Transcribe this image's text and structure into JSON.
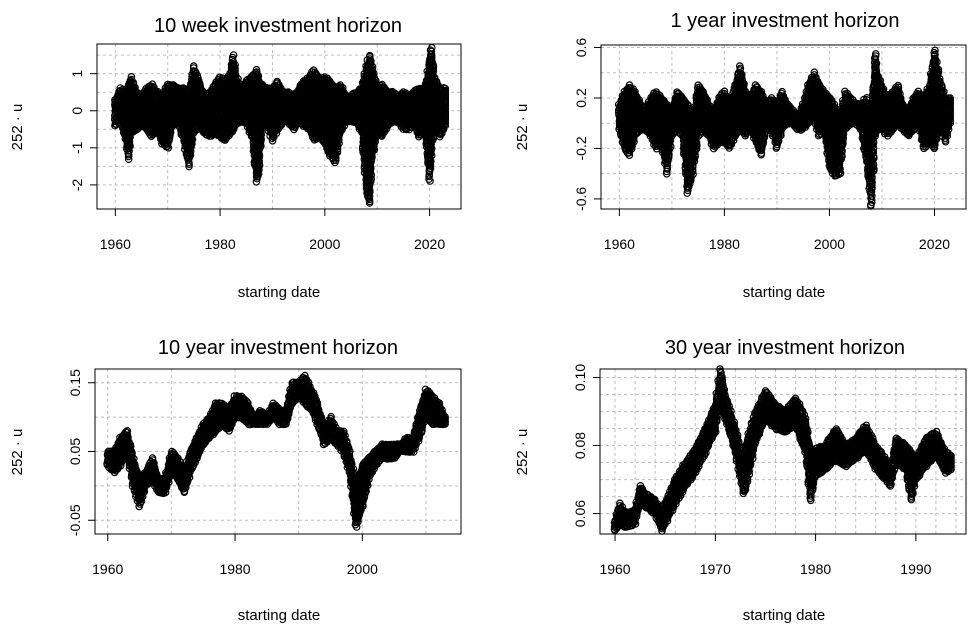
{
  "chart_data": [
    {
      "type": "scatter",
      "title": "10 week investment horizon",
      "xlabel": "starting date",
      "ylabel": "252 · u",
      "xlim": [
        1956.5,
        2026
      ],
      "ylim": [
        -2.65,
        1.8
      ],
      "xticks": [
        1960,
        1980,
        2000,
        2020
      ],
      "yticks": [
        -2,
        -1,
        0,
        1
      ],
      "xtick_labels": [
        "1960",
        "1980",
        "2000",
        "2020"
      ],
      "ytick_labels": [
        "-2",
        "-1",
        "0",
        "1"
      ],
      "xgrid": [
        1960,
        1970,
        1980,
        1990,
        2000,
        2010,
        2020
      ],
      "ygrid": [
        -2,
        -1.5,
        -1,
        -0.5,
        0,
        0.5,
        1,
        1.5
      ],
      "grid": true,
      "series": [
        {
          "x": [
            1960,
            1961,
            1962,
            1962.5,
            1963,
            1964,
            1965,
            1966,
            1967,
            1968,
            1969,
            1970,
            1971,
            1972,
            1973,
            1974,
            1975,
            1976,
            1977,
            1978,
            1979,
            1980,
            1981,
            1982,
            1982.5,
            1983,
            1984,
            1985,
            1986,
            1987,
            1987.5,
            1988,
            1989,
            1990,
            1991,
            1992,
            1993,
            1994,
            1995,
            1996,
            1997,
            1998,
            1999,
            2000,
            2001,
            2002,
            2003,
            2004,
            2005,
            2006,
            2007,
            2008,
            2008.5,
            2009,
            2010,
            2011,
            2012,
            2013,
            2014,
            2015,
            2016,
            2017,
            2018,
            2019,
            2020,
            2020.3,
            2021,
            2022,
            2023
          ],
          "high": [
            0.3,
            0.6,
            0.5,
            0.7,
            0.9,
            0.5,
            0.4,
            0.6,
            0.7,
            0.5,
            0.4,
            0.7,
            0.7,
            0.6,
            0.6,
            0.5,
            1.2,
            0.8,
            0.4,
            0.5,
            0.7,
            0.9,
            0.8,
            1.0,
            1.5,
            1.0,
            0.6,
            0.8,
            0.9,
            1.1,
            0.8,
            0.7,
            0.6,
            0.6,
            0.8,
            0.5,
            0.5,
            0.4,
            0.6,
            0.8,
            0.9,
            1.1,
            0.8,
            0.9,
            0.8,
            0.6,
            0.7,
            0.4,
            0.4,
            0.5,
            0.6,
            1.2,
            1.5,
            1.2,
            0.6,
            0.7,
            0.5,
            0.5,
            0.4,
            0.5,
            0.4,
            0.5,
            0.6,
            0.6,
            1.3,
            1.7,
            0.9,
            0.6,
            0.6
          ],
          "low": [
            -0.4,
            -0.3,
            -0.8,
            -1.3,
            -0.6,
            -0.5,
            -0.4,
            -0.5,
            -0.7,
            -0.5,
            -0.9,
            -1.0,
            -0.4,
            -0.3,
            -0.8,
            -1.5,
            -0.6,
            -0.4,
            -0.6,
            -0.7,
            -0.6,
            -0.7,
            -0.8,
            -0.6,
            -0.5,
            -0.4,
            -0.3,
            -0.3,
            -0.7,
            -1.9,
            -1.6,
            -0.4,
            -0.4,
            -0.8,
            -0.5,
            -0.3,
            -0.3,
            -0.5,
            -0.3,
            -0.4,
            -0.5,
            -0.8,
            -0.7,
            -0.9,
            -1.2,
            -1.4,
            -0.6,
            -0.3,
            -0.3,
            -0.3,
            -0.6,
            -2.2,
            -2.5,
            -1.3,
            -0.6,
            -0.7,
            -0.4,
            -0.3,
            -0.3,
            -0.5,
            -0.5,
            -0.3,
            -0.7,
            -0.5,
            -1.9,
            -1.2,
            -0.4,
            -0.7,
            -0.4
          ]
        }
      ]
    },
    {
      "type": "scatter",
      "title": "1 year investment horizon",
      "xlabel": "starting date",
      "ylabel": "252 · u",
      "xlim": [
        1956.5,
        2026
      ],
      "ylim": [
        -0.68,
        0.62
      ],
      "xticks": [
        1960,
        1980,
        2000,
        2020
      ],
      "yticks": [
        -0.6,
        -0.2,
        0.2,
        0.6
      ],
      "xtick_labels": [
        "1960",
        "1980",
        "2000",
        "2020"
      ],
      "ytick_labels": [
        "-0.6",
        "-0.2",
        "0.2",
        "0.6"
      ],
      "xgrid": [
        1960,
        1970,
        1980,
        1990,
        2000,
        2010,
        2020
      ],
      "ygrid": [
        -0.6,
        -0.4,
        -0.2,
        0,
        0.2,
        0.4,
        0.6
      ],
      "grid": true,
      "series": [
        {
          "x": [
            1960,
            1961,
            1962,
            1963,
            1964,
            1965,
            1966,
            1967,
            1968,
            1969,
            1970,
            1971,
            1972,
            1973,
            1974,
            1975,
            1976,
            1977,
            1978,
            1979,
            1980,
            1981,
            1982,
            1983,
            1984,
            1985,
            1986,
            1987,
            1988,
            1989,
            1990,
            1991,
            1992,
            1993,
            1994,
            1995,
            1996,
            1997,
            1998,
            1999,
            2000,
            2001,
            2002,
            2003,
            2004,
            2005,
            2006,
            2007,
            2008,
            2008.7,
            2009,
            2010,
            2011,
            2012,
            2013,
            2014,
            2015,
            2016,
            2017,
            2018,
            2019,
            2020,
            2021,
            2022,
            2023
          ],
          "high": [
            0.15,
            0.25,
            0.3,
            0.25,
            0.15,
            0.1,
            0.2,
            0.25,
            0.2,
            0.15,
            0.1,
            0.25,
            0.2,
            0.15,
            0.05,
            0.3,
            0.25,
            0.15,
            0.1,
            0.2,
            0.25,
            0.15,
            0.3,
            0.45,
            0.25,
            0.2,
            0.3,
            0.25,
            0.15,
            0.2,
            0.15,
            0.25,
            0.15,
            0.1,
            0.05,
            0.15,
            0.3,
            0.4,
            0.3,
            0.25,
            0.2,
            0.15,
            0.05,
            0.25,
            0.2,
            0.15,
            0.15,
            0.2,
            0.05,
            0.55,
            0.4,
            0.3,
            0.2,
            0.25,
            0.3,
            0.15,
            0.1,
            0.2,
            0.25,
            0.2,
            0.3,
            0.58,
            0.35,
            0.2,
            0.2
          ],
          "low": [
            -0.05,
            -0.2,
            -0.25,
            -0.1,
            -0.05,
            -0.05,
            -0.1,
            -0.2,
            -0.15,
            -0.4,
            -0.1,
            -0.05,
            -0.1,
            -0.55,
            -0.4,
            -0.1,
            -0.05,
            -0.1,
            -0.2,
            -0.15,
            -0.15,
            -0.2,
            -0.1,
            -0.05,
            -0.1,
            -0.05,
            -0.15,
            -0.25,
            -0.05,
            -0.05,
            -0.2,
            -0.05,
            0.0,
            0.0,
            -0.05,
            -0.05,
            0.0,
            0.05,
            -0.1,
            -0.05,
            -0.35,
            -0.42,
            -0.4,
            -0.05,
            0.0,
            0.0,
            -0.05,
            -0.3,
            -0.66,
            -0.1,
            -0.05,
            -0.05,
            -0.1,
            -0.05,
            0.0,
            -0.05,
            -0.1,
            -0.05,
            0.0,
            -0.2,
            -0.15,
            -0.2,
            0.0,
            -0.15,
            0.0
          ]
        }
      ]
    },
    {
      "type": "scatter",
      "title": "10 year investment horizon",
      "xlabel": "starting date",
      "ylabel": "252 · u",
      "xlim": [
        1958,
        2015.5
      ],
      "ylim": [
        -0.07,
        0.17
      ],
      "xticks": [
        1960,
        1980,
        2000
      ],
      "yticks": [
        -0.05,
        0.05,
        0.15
      ],
      "xtick_labels": [
        "1960",
        "1980",
        "2000"
      ],
      "ytick_labels": [
        "-0.05",
        "0.05",
        "0.15"
      ],
      "xgrid": [
        1960,
        1970,
        1980,
        1990,
        2000,
        2010
      ],
      "ygrid": [
        -0.05,
        0,
        0.05,
        0.1,
        0.15
      ],
      "grid": true,
      "series": [
        {
          "x": [
            1960,
            1961,
            1962,
            1963,
            1964,
            1965,
            1966,
            1967,
            1968,
            1969,
            1970,
            1971,
            1972,
            1973,
            1974,
            1975,
            1976,
            1977,
            1978,
            1979,
            1980,
            1981,
            1982,
            1983,
            1984,
            1985,
            1986,
            1987,
            1988,
            1989,
            1990,
            1991,
            1992,
            1993,
            1994,
            1995,
            1996,
            1997,
            1998,
            1999,
            2000,
            2001,
            2002,
            2003,
            2004,
            2005,
            2006,
            2007,
            2008,
            2009,
            2010,
            2011,
            2012,
            2013
          ],
          "high": [
            0.05,
            0.05,
            0.07,
            0.08,
            0.04,
            0.01,
            0.02,
            0.04,
            0.01,
            0.01,
            0.05,
            0.04,
            0.02,
            0.05,
            0.07,
            0.09,
            0.1,
            0.12,
            0.12,
            0.11,
            0.13,
            0.13,
            0.12,
            0.1,
            0.11,
            0.1,
            0.12,
            0.11,
            0.11,
            0.15,
            0.15,
            0.16,
            0.14,
            0.12,
            0.08,
            0.1,
            0.08,
            0.08,
            0.05,
            0.0,
            0.03,
            0.04,
            0.05,
            0.06,
            0.06,
            0.06,
            0.06,
            0.07,
            0.07,
            0.11,
            0.14,
            0.13,
            0.12,
            0.1
          ],
          "low": [
            0.03,
            0.02,
            0.03,
            0.05,
            0.0,
            -0.03,
            0.0,
            0.01,
            -0.01,
            -0.01,
            0.02,
            0.01,
            -0.01,
            0.02,
            0.04,
            0.06,
            0.07,
            0.08,
            0.09,
            0.08,
            0.1,
            0.1,
            0.09,
            0.09,
            0.09,
            0.09,
            0.1,
            0.09,
            0.09,
            0.12,
            0.13,
            0.12,
            0.11,
            0.09,
            0.06,
            0.07,
            0.06,
            0.05,
            0.02,
            -0.06,
            -0.03,
            0.01,
            0.03,
            0.04,
            0.04,
            0.04,
            0.05,
            0.05,
            0.05,
            0.07,
            0.1,
            0.09,
            0.09,
            0.09
          ]
        }
      ]
    },
    {
      "type": "scatter",
      "title": "30 year investment horizon",
      "xlabel": "starting date",
      "ylabel": "252 · u",
      "xlim": [
        1958.5,
        1995
      ],
      "ylim": [
        0.054,
        0.1025
      ],
      "xticks": [
        1960,
        1970,
        1980,
        1990
      ],
      "yticks": [
        0.06,
        0.08,
        0.1
      ],
      "xtick_labels": [
        "1960",
        "1970",
        "1980",
        "1990"
      ],
      "ytick_labels": [
        "0.06",
        "0.08",
        "0.10"
      ],
      "xgrid": [
        1960,
        1962,
        1964,
        1966,
        1968,
        1970,
        1972,
        1974,
        1976,
        1978,
        1980,
        1982,
        1984,
        1986,
        1988,
        1990,
        1992,
        1994
      ],
      "ygrid": [
        0.06,
        0.065,
        0.07,
        0.075,
        0.08,
        0.085,
        0.09,
        0.095,
        0.1
      ],
      "grid": true,
      "series": [
        {
          "x": [
            1960,
            1960.5,
            1961,
            1962,
            1962.5,
            1963,
            1964,
            1964.7,
            1965,
            1966,
            1967,
            1968,
            1969,
            1970,
            1970.5,
            1971,
            1972,
            1972.8,
            1973,
            1974,
            1975,
            1976,
            1977,
            1978,
            1979,
            1979.5,
            1980,
            1981,
            1982,
            1983,
            1984,
            1985,
            1986,
            1987,
            1987.5,
            1988,
            1989,
            1989.5,
            1990,
            1991,
            1992,
            1993,
            1993.5
          ],
          "high": [
            0.058,
            0.063,
            0.06,
            0.061,
            0.068,
            0.066,
            0.064,
            0.06,
            0.063,
            0.07,
            0.075,
            0.079,
            0.085,
            0.092,
            0.1025,
            0.095,
            0.085,
            0.075,
            0.08,
            0.09,
            0.096,
            0.092,
            0.09,
            0.094,
            0.088,
            0.078,
            0.079,
            0.08,
            0.085,
            0.08,
            0.082,
            0.086,
            0.08,
            0.076,
            0.073,
            0.082,
            0.08,
            0.078,
            0.076,
            0.082,
            0.084,
            0.078,
            0.077
          ],
          "low": [
            0.055,
            0.057,
            0.056,
            0.057,
            0.063,
            0.062,
            0.06,
            0.055,
            0.057,
            0.063,
            0.068,
            0.072,
            0.078,
            0.084,
            0.093,
            0.088,
            0.078,
            0.066,
            0.067,
            0.081,
            0.088,
            0.085,
            0.084,
            0.086,
            0.078,
            0.064,
            0.071,
            0.073,
            0.076,
            0.074,
            0.076,
            0.079,
            0.073,
            0.07,
            0.068,
            0.075,
            0.073,
            0.064,
            0.07,
            0.074,
            0.077,
            0.072,
            0.073
          ]
        }
      ]
    }
  ]
}
